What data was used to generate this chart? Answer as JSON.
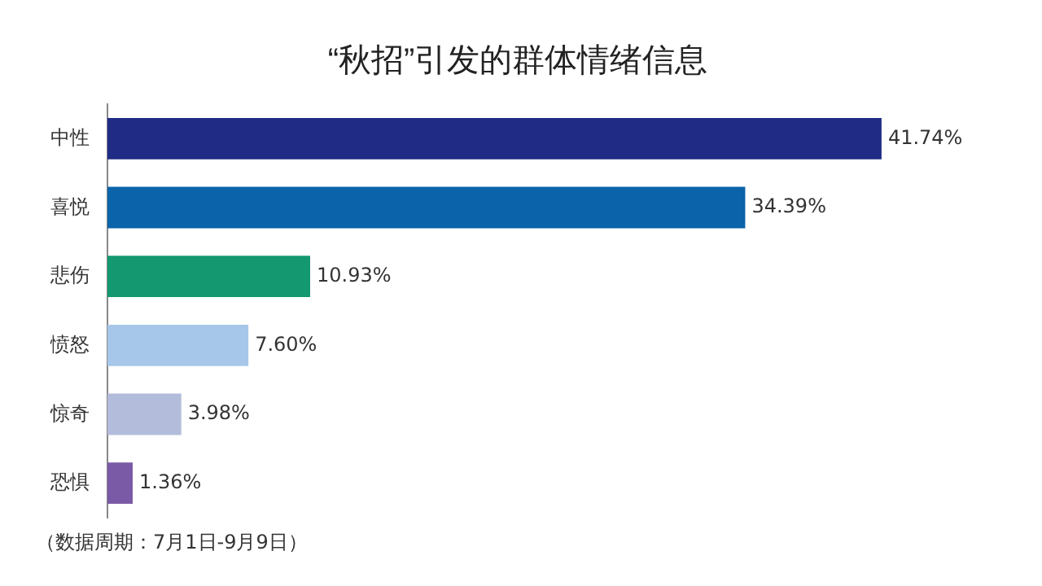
{
  "chart_data": {
    "type": "bar",
    "orientation": "horizontal",
    "title": "“秋招”引发的群体情绪信息",
    "categories": [
      "中性",
      "喜悦",
      "悲伤",
      "愤怒",
      "惊奇",
      "恐惧"
    ],
    "values": [
      41.74,
      34.39,
      10.93,
      7.6,
      3.98,
      1.36
    ],
    "value_labels": [
      "41.74%",
      "34.39%",
      "10.93%",
      "7.60%",
      "3.98%",
      "1.36%"
    ],
    "colors": [
      "#1f2b85",
      "#0b63a9",
      "#13986f",
      "#a7c7ea",
      "#b4bcdb",
      "#7a5aa6"
    ],
    "legend": false,
    "annotations": [
      "（数据周期：7月1日-9月9日）"
    ]
  }
}
